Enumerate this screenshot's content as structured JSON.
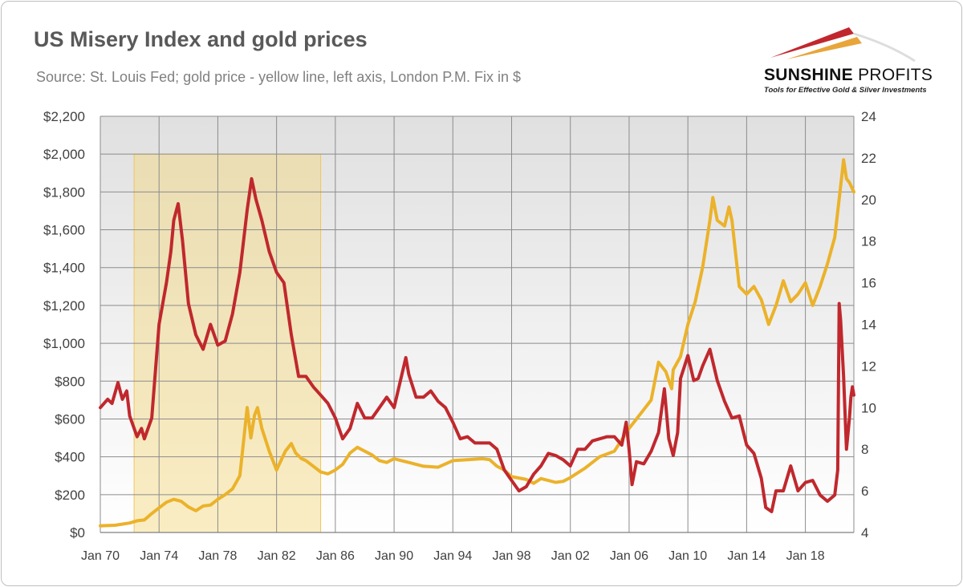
{
  "header": {
    "title": "US Misery Index and gold prices",
    "subtitle": "Source: St. Louis Fed; gold price - yellow line, left axis, London P.M. Fix in $"
  },
  "logo": {
    "name_bold": "SUNSHINE",
    "name_light": "PROFITS",
    "tagline": "Tools for Effective Gold & Silver Investments",
    "colors": {
      "red": "#c0282d",
      "gold": "#e8a53a"
    }
  },
  "chart_data": {
    "type": "line",
    "x_range": [
      1970.0,
      2021.3
    ],
    "x_ticks": [
      {
        "label": "Jan 70",
        "value": 1970
      },
      {
        "label": "Jan 74",
        "value": 1974
      },
      {
        "label": "Jan 78",
        "value": 1978
      },
      {
        "label": "Jan 82",
        "value": 1982
      },
      {
        "label": "Jan 86",
        "value": 1986
      },
      {
        "label": "Jan 90",
        "value": 1990
      },
      {
        "label": "Jan 94",
        "value": 1994
      },
      {
        "label": "Jan 98",
        "value": 1998
      },
      {
        "label": "Jan 02",
        "value": 2002
      },
      {
        "label": "Jan 06",
        "value": 2006
      },
      {
        "label": "Jan 10",
        "value": 2010
      },
      {
        "label": "Jan 14",
        "value": 2014
      },
      {
        "label": "Jan 18",
        "value": 2018
      }
    ],
    "y_left": {
      "range": [
        0,
        2200
      ],
      "ticks": [
        {
          "label": "$0",
          "value": 0
        },
        {
          "label": "$200",
          "value": 200
        },
        {
          "label": "$400",
          "value": 400
        },
        {
          "label": "$600",
          "value": 600
        },
        {
          "label": "$800",
          "value": 800
        },
        {
          "label": "$1,000",
          "value": 1000
        },
        {
          "label": "$1,200",
          "value": 1200
        },
        {
          "label": "$1,400",
          "value": 1400
        },
        {
          "label": "$1,600",
          "value": 1600
        },
        {
          "label": "$1,800",
          "value": 1800
        },
        {
          "label": "$2,000",
          "value": 2000
        },
        {
          "label": "$2,200",
          "value": 2200
        }
      ]
    },
    "y_right": {
      "range": [
        4,
        24
      ],
      "ticks": [
        {
          "label": "4",
          "value": 4
        },
        {
          "label": "6",
          "value": 6
        },
        {
          "label": "8",
          "value": 8
        },
        {
          "label": "10",
          "value": 10
        },
        {
          "label": "12",
          "value": 12
        },
        {
          "label": "14",
          "value": 14
        },
        {
          "label": "16",
          "value": 16
        },
        {
          "label": "18",
          "value": 18
        },
        {
          "label": "20",
          "value": 20
        },
        {
          "label": "22",
          "value": 22
        },
        {
          "label": "24",
          "value": 24
        }
      ]
    },
    "grid": true,
    "highlight": {
      "x_start": 1972.3,
      "x_end": 1985.0,
      "y_top": 2000,
      "color": "#f3d77a"
    },
    "series": [
      {
        "axis": "left",
        "color": "#ebb22a",
        "points": [
          [
            1970.0,
            35
          ],
          [
            1971.0,
            38
          ],
          [
            1972.0,
            50
          ],
          [
            1972.5,
            62
          ],
          [
            1973.0,
            66
          ],
          [
            1973.5,
            100
          ],
          [
            1974.0,
            130
          ],
          [
            1974.5,
            160
          ],
          [
            1975.0,
            175
          ],
          [
            1975.5,
            165
          ],
          [
            1976.0,
            135
          ],
          [
            1976.5,
            115
          ],
          [
            1977.0,
            140
          ],
          [
            1977.5,
            145
          ],
          [
            1978.0,
            175
          ],
          [
            1978.5,
            200
          ],
          [
            1979.0,
            230
          ],
          [
            1979.5,
            300
          ],
          [
            1980.0,
            660
          ],
          [
            1980.25,
            500
          ],
          [
            1980.5,
            620
          ],
          [
            1980.7,
            660
          ],
          [
            1981.0,
            550
          ],
          [
            1981.5,
            430
          ],
          [
            1982.0,
            330
          ],
          [
            1982.3,
            380
          ],
          [
            1982.6,
            430
          ],
          [
            1983.0,
            470
          ],
          [
            1983.3,
            420
          ],
          [
            1983.7,
            390
          ],
          [
            1984.0,
            380
          ],
          [
            1984.5,
            350
          ],
          [
            1985.0,
            320
          ],
          [
            1985.5,
            310
          ],
          [
            1986.0,
            330
          ],
          [
            1986.5,
            360
          ],
          [
            1987.0,
            420
          ],
          [
            1987.5,
            450
          ],
          [
            1988.0,
            430
          ],
          [
            1988.5,
            410
          ],
          [
            1989.0,
            380
          ],
          [
            1989.5,
            370
          ],
          [
            1990.0,
            390
          ],
          [
            1990.5,
            380
          ],
          [
            1991.0,
            370
          ],
          [
            1992.0,
            350
          ],
          [
            1993.0,
            345
          ],
          [
            1994.0,
            380
          ],
          [
            1995.0,
            385
          ],
          [
            1996.0,
            390
          ],
          [
            1996.5,
            385
          ],
          [
            1997.0,
            350
          ],
          [
            1997.5,
            330
          ],
          [
            1998.0,
            295
          ],
          [
            1999.0,
            280
          ],
          [
            1999.5,
            260
          ],
          [
            2000.0,
            285
          ],
          [
            2001.0,
            265
          ],
          [
            2001.5,
            270
          ],
          [
            2002.0,
            290
          ],
          [
            2003.0,
            340
          ],
          [
            2004.0,
            400
          ],
          [
            2005.0,
            430
          ],
          [
            2006.0,
            550
          ],
          [
            2006.5,
            600
          ],
          [
            2007.0,
            650
          ],
          [
            2007.5,
            700
          ],
          [
            2008.0,
            900
          ],
          [
            2008.5,
            850
          ],
          [
            2008.9,
            760
          ],
          [
            2009.0,
            860
          ],
          [
            2009.5,
            930
          ],
          [
            2010.0,
            1100
          ],
          [
            2010.5,
            1220
          ],
          [
            2011.0,
            1400
          ],
          [
            2011.5,
            1650
          ],
          [
            2011.7,
            1770
          ],
          [
            2012.0,
            1650
          ],
          [
            2012.5,
            1620
          ],
          [
            2012.8,
            1720
          ],
          [
            2013.0,
            1650
          ],
          [
            2013.5,
            1300
          ],
          [
            2014.0,
            1260
          ],
          [
            2014.5,
            1300
          ],
          [
            2015.0,
            1230
          ],
          [
            2015.5,
            1100
          ],
          [
            2016.0,
            1200
          ],
          [
            2016.5,
            1330
          ],
          [
            2017.0,
            1220
          ],
          [
            2017.5,
            1260
          ],
          [
            2018.0,
            1320
          ],
          [
            2018.5,
            1200
          ],
          [
            2019.0,
            1300
          ],
          [
            2019.5,
            1420
          ],
          [
            2020.0,
            1560
          ],
          [
            2020.5,
            1900
          ],
          [
            2020.6,
            1970
          ],
          [
            2020.8,
            1870
          ],
          [
            2021.0,
            1850
          ],
          [
            2021.3,
            1800
          ]
        ]
      },
      {
        "axis": "right",
        "color": "#c0282d",
        "points": [
          [
            1970.0,
            10.0
          ],
          [
            1970.5,
            10.4
          ],
          [
            1970.8,
            10.2
          ],
          [
            1971.2,
            11.2
          ],
          [
            1971.5,
            10.4
          ],
          [
            1971.8,
            10.8
          ],
          [
            1972.0,
            9.6
          ],
          [
            1972.2,
            9.2
          ],
          [
            1972.5,
            8.6
          ],
          [
            1972.8,
            9.0
          ],
          [
            1973.0,
            8.5
          ],
          [
            1973.5,
            9.5
          ],
          [
            1974.0,
            14.0
          ],
          [
            1974.5,
            16.0
          ],
          [
            1974.8,
            17.5
          ],
          [
            1975.0,
            19.0
          ],
          [
            1975.3,
            19.8
          ],
          [
            1975.6,
            18.0
          ],
          [
            1976.0,
            15.0
          ],
          [
            1976.5,
            13.5
          ],
          [
            1977.0,
            12.8
          ],
          [
            1977.5,
            14.0
          ],
          [
            1978.0,
            13.0
          ],
          [
            1978.5,
            13.2
          ],
          [
            1979.0,
            14.5
          ],
          [
            1979.5,
            16.5
          ],
          [
            1980.0,
            19.5
          ],
          [
            1980.3,
            21.0
          ],
          [
            1980.6,
            20.0
          ],
          [
            1981.0,
            19.0
          ],
          [
            1981.5,
            17.5
          ],
          [
            1982.0,
            16.5
          ],
          [
            1982.5,
            16.0
          ],
          [
            1983.0,
            13.5
          ],
          [
            1983.5,
            11.5
          ],
          [
            1984.0,
            11.5
          ],
          [
            1984.5,
            11.0
          ],
          [
            1985.0,
            10.6
          ],
          [
            1985.5,
            10.2
          ],
          [
            1986.0,
            9.5
          ],
          [
            1986.5,
            8.5
          ],
          [
            1987.0,
            9.0
          ],
          [
            1987.5,
            10.2
          ],
          [
            1988.0,
            9.5
          ],
          [
            1988.5,
            9.5
          ],
          [
            1989.0,
            10.0
          ],
          [
            1989.5,
            10.5
          ],
          [
            1990.0,
            10.0
          ],
          [
            1990.5,
            11.5
          ],
          [
            1990.8,
            12.4
          ],
          [
            1991.0,
            11.6
          ],
          [
            1991.5,
            10.5
          ],
          [
            1992.0,
            10.5
          ],
          [
            1992.5,
            10.8
          ],
          [
            1993.0,
            10.3
          ],
          [
            1993.5,
            10.0
          ],
          [
            1994.0,
            9.3
          ],
          [
            1994.5,
            8.5
          ],
          [
            1995.0,
            8.6
          ],
          [
            1995.5,
            8.3
          ],
          [
            1996.0,
            8.3
          ],
          [
            1996.5,
            8.3
          ],
          [
            1997.0,
            8.0
          ],
          [
            1997.5,
            7.0
          ],
          [
            1998.0,
            6.5
          ],
          [
            1998.5,
            6.0
          ],
          [
            1999.0,
            6.2
          ],
          [
            1999.5,
            6.8
          ],
          [
            2000.0,
            7.2
          ],
          [
            2000.5,
            7.8
          ],
          [
            2001.0,
            7.7
          ],
          [
            2001.5,
            7.5
          ],
          [
            2002.0,
            7.2
          ],
          [
            2002.5,
            8.0
          ],
          [
            2003.0,
            8.0
          ],
          [
            2003.5,
            8.4
          ],
          [
            2004.0,
            8.5
          ],
          [
            2004.5,
            8.6
          ],
          [
            2005.0,
            8.6
          ],
          [
            2005.5,
            8.2
          ],
          [
            2005.8,
            9.3
          ],
          [
            2006.0,
            8.0
          ],
          [
            2006.2,
            6.3
          ],
          [
            2006.5,
            7.4
          ],
          [
            2007.0,
            7.3
          ],
          [
            2007.5,
            7.9
          ],
          [
            2008.0,
            8.8
          ],
          [
            2008.4,
            10.9
          ],
          [
            2008.7,
            8.5
          ],
          [
            2009.0,
            7.7
          ],
          [
            2009.3,
            8.8
          ],
          [
            2009.5,
            11.4
          ],
          [
            2010.0,
            12.5
          ],
          [
            2010.4,
            11.3
          ],
          [
            2010.7,
            11.4
          ],
          [
            2011.0,
            12.0
          ],
          [
            2011.5,
            12.8
          ],
          [
            2012.0,
            11.3
          ],
          [
            2012.5,
            10.3
          ],
          [
            2013.0,
            9.5
          ],
          [
            2013.5,
            9.6
          ],
          [
            2014.0,
            8.2
          ],
          [
            2014.5,
            7.8
          ],
          [
            2015.0,
            6.6
          ],
          [
            2015.3,
            5.2
          ],
          [
            2015.7,
            5.0
          ],
          [
            2016.0,
            6.0
          ],
          [
            2016.5,
            6.0
          ],
          [
            2017.0,
            7.2
          ],
          [
            2017.5,
            6.0
          ],
          [
            2018.0,
            6.4
          ],
          [
            2018.5,
            6.5
          ],
          [
            2019.0,
            5.8
          ],
          [
            2019.5,
            5.5
          ],
          [
            2020.0,
            5.8
          ],
          [
            2020.2,
            7.0
          ],
          [
            2020.3,
            15.0
          ],
          [
            2020.4,
            14.2
          ],
          [
            2020.6,
            11.5
          ],
          [
            2020.8,
            8.0
          ],
          [
            2021.0,
            9.5
          ],
          [
            2021.1,
            10.5
          ],
          [
            2021.2,
            11.0
          ],
          [
            2021.3,
            10.6
          ]
        ]
      }
    ]
  }
}
